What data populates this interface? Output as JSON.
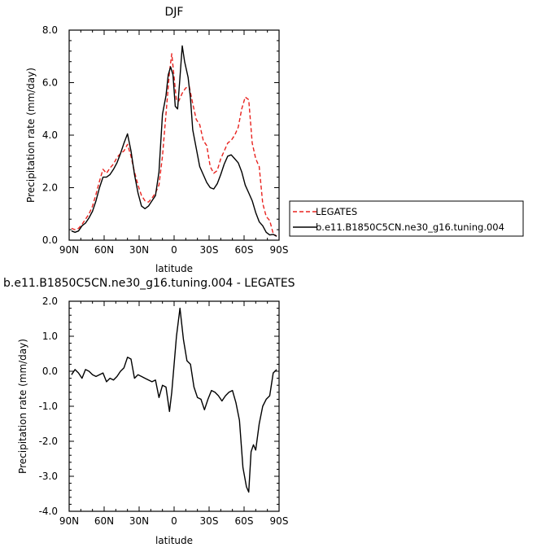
{
  "chart_data": [
    {
      "type": "line",
      "title": "DJF",
      "xlabel": "latitude",
      "ylabel": "Precipitation rate (mm/day)",
      "xlim": [
        90,
        -90
      ],
      "ylim": [
        0,
        8
      ],
      "x_ticks": [
        {
          "value": 90,
          "label": "90N"
        },
        {
          "value": 60,
          "label": "60N"
        },
        {
          "value": 30,
          "label": "30N"
        },
        {
          "value": 0,
          "label": "0"
        },
        {
          "value": -30,
          "label": "30S"
        },
        {
          "value": -60,
          "label": "60S"
        },
        {
          "value": -90,
          "label": "90S"
        }
      ],
      "y_ticks": [
        {
          "value": 0,
          "label": "0.0"
        },
        {
          "value": 2,
          "label": "2.0"
        },
        {
          "value": 4,
          "label": "4.0"
        },
        {
          "value": 6,
          "label": "6.0"
        },
        {
          "value": 8,
          "label": "8.0"
        }
      ],
      "legend": {
        "placement": "right"
      },
      "series": [
        {
          "name": "LEGATES",
          "color": "#e8221e",
          "dash": "dashed",
          "points": [
            [
              88,
              0.45
            ],
            [
              85,
              0.4
            ],
            [
              82,
              0.45
            ],
            [
              79,
              0.6
            ],
            [
              76,
              0.8
            ],
            [
              73,
              1.0
            ],
            [
              70,
              1.3
            ],
            [
              67,
              1.75
            ],
            [
              64,
              2.25
            ],
            [
              61,
              2.7
            ],
            [
              58,
              2.55
            ],
            [
              55,
              2.75
            ],
            [
              52,
              2.9
            ],
            [
              49,
              3.15
            ],
            [
              46,
              3.3
            ],
            [
              43,
              3.4
            ],
            [
              40,
              3.65
            ],
            [
              37,
              3.2
            ],
            [
              34,
              2.6
            ],
            [
              31,
              2.1
            ],
            [
              28,
              1.7
            ],
            [
              25,
              1.5
            ],
            [
              22,
              1.45
            ],
            [
              19,
              1.6
            ],
            [
              16,
              1.8
            ],
            [
              13,
              2.1
            ],
            [
              10,
              3.2
            ],
            [
              7,
              4.8
            ],
            [
              4,
              6.4
            ],
            [
              2,
              7.1
            ],
            [
              0,
              6.2
            ],
            [
              -2,
              5.3
            ],
            [
              -4,
              5.3
            ],
            [
              -7,
              5.6
            ],
            [
              -10,
              5.8
            ],
            [
              -13,
              5.85
            ],
            [
              -16,
              5.2
            ],
            [
              -19,
              4.6
            ],
            [
              -22,
              4.4
            ],
            [
              -25,
              3.8
            ],
            [
              -28,
              3.6
            ],
            [
              -31,
              2.8
            ],
            [
              -34,
              2.55
            ],
            [
              -37,
              2.65
            ],
            [
              -40,
              3.1
            ],
            [
              -43,
              3.4
            ],
            [
              -46,
              3.7
            ],
            [
              -49,
              3.8
            ],
            [
              -52,
              4.0
            ],
            [
              -55,
              4.3
            ],
            [
              -58,
              5.0
            ],
            [
              -61,
              5.45
            ],
            [
              -64,
              5.35
            ],
            [
              -67,
              3.7
            ],
            [
              -70,
              3.1
            ],
            [
              -73,
              2.8
            ],
            [
              -76,
              1.4
            ],
            [
              -79,
              0.9
            ],
            [
              -82,
              0.75
            ],
            [
              -85,
              0.25
            ],
            [
              -88,
              0.15
            ]
          ]
        },
        {
          "name": "b.e11.B1850C5CN.ne30_g16.tuning.004",
          "color": "#000000",
          "dash": "solid",
          "points": [
            [
              88,
              0.35
            ],
            [
              85,
              0.3
            ],
            [
              82,
              0.35
            ],
            [
              79,
              0.55
            ],
            [
              76,
              0.65
            ],
            [
              73,
              0.85
            ],
            [
              70,
              1.1
            ],
            [
              67,
              1.5
            ],
            [
              64,
              2.0
            ],
            [
              61,
              2.4
            ],
            [
              58,
              2.4
            ],
            [
              55,
              2.5
            ],
            [
              52,
              2.7
            ],
            [
              49,
              2.95
            ],
            [
              46,
              3.3
            ],
            [
              43,
              3.7
            ],
            [
              40,
              4.05
            ],
            [
              37,
              3.4
            ],
            [
              34,
              2.5
            ],
            [
              31,
              1.8
            ],
            [
              28,
              1.3
            ],
            [
              25,
              1.2
            ],
            [
              22,
              1.3
            ],
            [
              19,
              1.5
            ],
            [
              16,
              1.7
            ],
            [
              13,
              2.6
            ],
            [
              10,
              4.8
            ],
            [
              7,
              5.5
            ],
            [
              5,
              6.3
            ],
            [
              3,
              6.6
            ],
            [
              1,
              6.3
            ],
            [
              -1,
              5.1
            ],
            [
              -3,
              5.0
            ],
            [
              -5,
              6.2
            ],
            [
              -7,
              7.4
            ],
            [
              -9,
              6.8
            ],
            [
              -12,
              6.2
            ],
            [
              -14,
              5.4
            ],
            [
              -16,
              4.2
            ],
            [
              -19,
              3.5
            ],
            [
              -22,
              2.8
            ],
            [
              -25,
              2.5
            ],
            [
              -28,
              2.2
            ],
            [
              -31,
              2.0
            ],
            [
              -34,
              1.95
            ],
            [
              -37,
              2.15
            ],
            [
              -40,
              2.5
            ],
            [
              -43,
              2.9
            ],
            [
              -46,
              3.2
            ],
            [
              -49,
              3.25
            ],
            [
              -52,
              3.1
            ],
            [
              -55,
              2.95
            ],
            [
              -58,
              2.6
            ],
            [
              -61,
              2.1
            ],
            [
              -64,
              1.8
            ],
            [
              -67,
              1.5
            ],
            [
              -70,
              1.05
            ],
            [
              -73,
              0.7
            ],
            [
              -76,
              0.55
            ],
            [
              -79,
              0.3
            ],
            [
              -82,
              0.2
            ],
            [
              -85,
              0.22
            ],
            [
              -88,
              0.15
            ]
          ]
        }
      ]
    },
    {
      "type": "line",
      "title": "b.e11.B1850C5CN.ne30_g16.tuning.004 - LEGATES",
      "xlabel": "latitude",
      "ylabel": "Precipitation rate (mm/day)",
      "xlim": [
        90,
        -90
      ],
      "ylim": [
        -4,
        2
      ],
      "x_ticks": [
        {
          "value": 90,
          "label": "90N"
        },
        {
          "value": 60,
          "label": "60N"
        },
        {
          "value": 30,
          "label": "30N"
        },
        {
          "value": 0,
          "label": "0"
        },
        {
          "value": -30,
          "label": "30S"
        },
        {
          "value": -60,
          "label": "60S"
        },
        {
          "value": -90,
          "label": "90S"
        }
      ],
      "y_ticks": [
        {
          "value": -4,
          "label": "-4.0"
        },
        {
          "value": -3,
          "label": "-3.0"
        },
        {
          "value": -2,
          "label": "-2.0"
        },
        {
          "value": -1,
          "label": "-1.0"
        },
        {
          "value": 0,
          "label": "0.0"
        },
        {
          "value": 1,
          "label": "1.0"
        },
        {
          "value": 2,
          "label": "2.0"
        }
      ],
      "series": [
        {
          "color": "#000000",
          "dash": "solid",
          "points": [
            [
              88,
              -0.1
            ],
            [
              85,
              0.05
            ],
            [
              82,
              -0.05
            ],
            [
              79,
              -0.2
            ],
            [
              76,
              0.05
            ],
            [
              73,
              0.0
            ],
            [
              70,
              -0.1
            ],
            [
              67,
              -0.15
            ],
            [
              64,
              -0.1
            ],
            [
              61,
              -0.05
            ],
            [
              58,
              -0.3
            ],
            [
              55,
              -0.2
            ],
            [
              52,
              -0.25
            ],
            [
              49,
              -0.15
            ],
            [
              46,
              0.0
            ],
            [
              43,
              0.1
            ],
            [
              40,
              0.4
            ],
            [
              37,
              0.35
            ],
            [
              34,
              -0.2
            ],
            [
              31,
              -0.1
            ],
            [
              28,
              -0.15
            ],
            [
              25,
              -0.2
            ],
            [
              22,
              -0.25
            ],
            [
              19,
              -0.3
            ],
            [
              16,
              -0.25
            ],
            [
              13,
              -0.75
            ],
            [
              10,
              -0.4
            ],
            [
              7,
              -0.45
            ],
            [
              4,
              -1.15
            ],
            [
              2,
              -0.6
            ],
            [
              0,
              0.2
            ],
            [
              -2,
              1.0
            ],
            [
              -5,
              1.8
            ],
            [
              -8,
              0.9
            ],
            [
              -11,
              0.3
            ],
            [
              -14,
              0.2
            ],
            [
              -17,
              -0.45
            ],
            [
              -20,
              -0.75
            ],
            [
              -23,
              -0.8
            ],
            [
              -26,
              -1.1
            ],
            [
              -29,
              -0.8
            ],
            [
              -32,
              -0.55
            ],
            [
              -35,
              -0.6
            ],
            [
              -38,
              -0.7
            ],
            [
              -41,
              -0.85
            ],
            [
              -44,
              -0.7
            ],
            [
              -47,
              -0.6
            ],
            [
              -50,
              -0.55
            ],
            [
              -53,
              -0.9
            ],
            [
              -56,
              -1.4
            ],
            [
              -59,
              -2.75
            ],
            [
              -62,
              -3.3
            ],
            [
              -64,
              -3.45
            ],
            [
              -66,
              -2.3
            ],
            [
              -68,
              -2.1
            ],
            [
              -70,
              -2.25
            ],
            [
              -73,
              -1.5
            ],
            [
              -76,
              -1.0
            ],
            [
              -79,
              -0.8
            ],
            [
              -82,
              -0.7
            ],
            [
              -85,
              -0.05
            ],
            [
              -88,
              0.05
            ]
          ]
        }
      ]
    }
  ]
}
